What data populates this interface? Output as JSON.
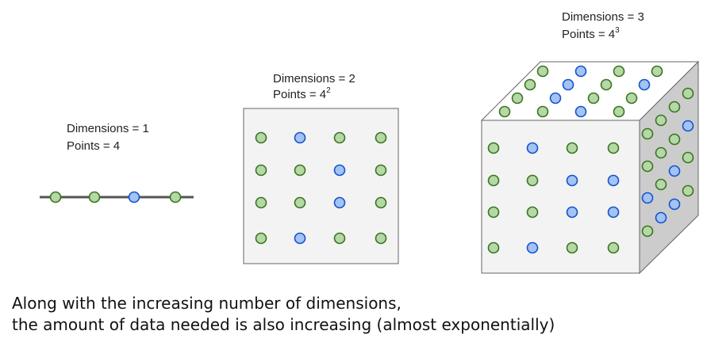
{
  "colors": {
    "green_fill": "#b6d7a8",
    "green_stroke": "#38761d",
    "blue_fill": "#a4c2f4",
    "blue_stroke": "#1155cc",
    "face_front": "#f3f3f3",
    "face_top": "#ffffff",
    "face_side": "#cccccc",
    "edge": "#666666",
    "line": "#555555"
  },
  "panel_1d": {
    "dimensions_label": "Dimensions = 1",
    "points_label": "Points = 4",
    "points": [
      "green",
      "green",
      "blue",
      "green"
    ]
  },
  "panel_2d": {
    "dimensions_label": "Dimensions = 2",
    "points_label_base": "Points = 4",
    "points_label_exp": "2",
    "grid": [
      [
        "green",
        "blue",
        "green",
        "green"
      ],
      [
        "green",
        "green",
        "blue",
        "green"
      ],
      [
        "green",
        "green",
        "blue",
        "green"
      ],
      [
        "green",
        "blue",
        "green",
        "green"
      ]
    ]
  },
  "panel_3d": {
    "dimensions_label": "Dimensions = 3",
    "points_label_base": "Points = 4",
    "points_label_exp": "3",
    "front_grid": [
      [
        "green",
        "blue",
        "green",
        "green"
      ],
      [
        "green",
        "green",
        "blue",
        "blue"
      ],
      [
        "green",
        "green",
        "blue",
        "blue"
      ],
      [
        "green",
        "blue",
        "green",
        "green"
      ]
    ],
    "top_grid": [
      [
        "green",
        "blue",
        "green",
        "green"
      ],
      [
        "green",
        "blue",
        "green",
        "blue"
      ],
      [
        "green",
        "blue",
        "green",
        "green"
      ],
      [
        "green",
        "green",
        "blue",
        "green"
      ]
    ],
    "side_grid": [
      [
        "green",
        "green",
        "green",
        "green"
      ],
      [
        "green",
        "green",
        "green",
        "blue"
      ],
      [
        "blue",
        "green",
        "blue",
        "green"
      ],
      [
        "green",
        "blue",
        "blue",
        "green"
      ]
    ]
  },
  "caption": {
    "line1": "Along with the increasing number of dimensions,",
    "line2": "the amount of data needed is also increasing (almost exponentially)"
  }
}
